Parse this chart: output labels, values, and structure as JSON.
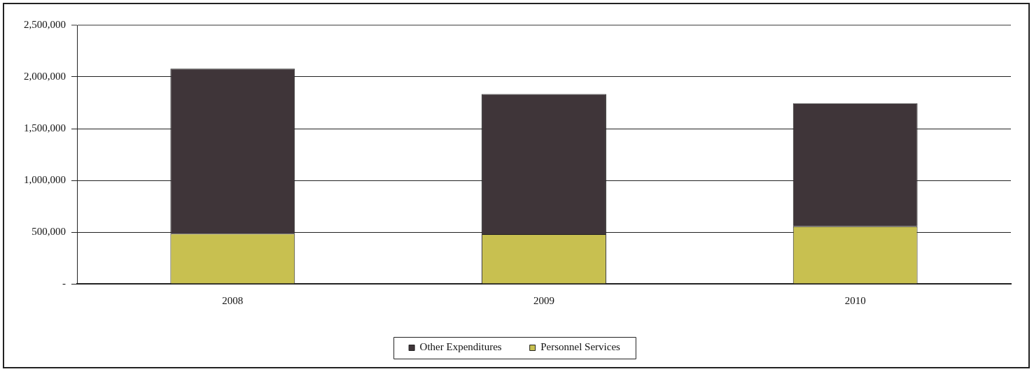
{
  "chart_data": {
    "type": "bar",
    "stacked": true,
    "categories": [
      "2008",
      "2009",
      "2010"
    ],
    "series": [
      {
        "name": "Personnel Services",
        "color": "#c8c050",
        "values": [
          485000,
          480000,
          555000
        ]
      },
      {
        "name": "Other Expenditures",
        "color": "#3f3539",
        "values": [
          1595000,
          1355000,
          1190000
        ]
      }
    ],
    "ylim": [
      0,
      2500000
    ],
    "yticks": [
      {
        "value": 0,
        "label": "-"
      },
      {
        "value": 500000,
        "label": "500,000"
      },
      {
        "value": 1000000,
        "label": "1,000,000"
      },
      {
        "value": 1500000,
        "label": "1,500,000"
      },
      {
        "value": 2000000,
        "label": "2,000,000"
      },
      {
        "value": 2500000,
        "label": "2,500,000"
      }
    ],
    "grid": "y",
    "legend": "bottom"
  }
}
